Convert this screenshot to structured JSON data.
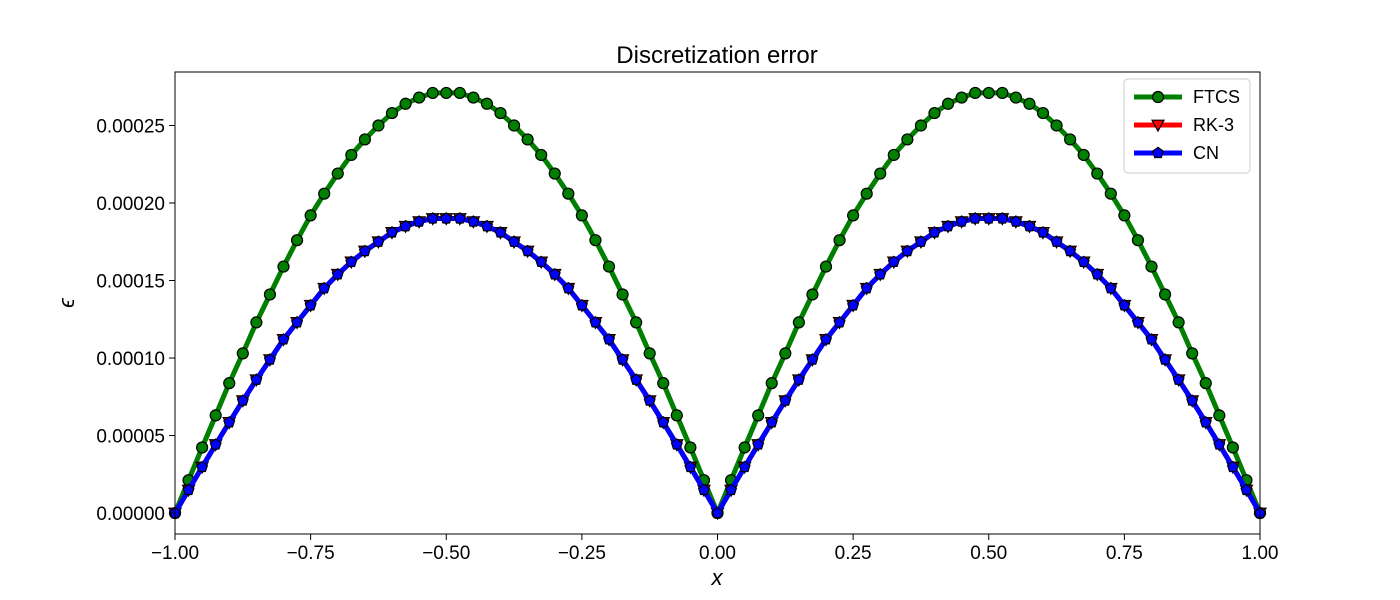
{
  "chart_data": {
    "type": "line",
    "title": "Discretization error",
    "xlabel": "x",
    "ylabel": "ϵ",
    "xlim": [
      -1.0,
      1.0
    ],
    "ylim": [
      -1.35e-05,
      0.0002845
    ],
    "xticks": [
      -1.0,
      -0.75,
      -0.5,
      -0.25,
      0.0,
      0.25,
      0.5,
      0.75,
      1.0
    ],
    "xtick_labels": [
      "−1.00",
      "−0.75",
      "−0.50",
      "−0.25",
      "0.00",
      "0.25",
      "0.50",
      "0.75",
      "1.00"
    ],
    "yticks": [
      0.0,
      5e-05,
      0.0001,
      0.00015,
      0.0002,
      0.00025
    ],
    "ytick_labels": [
      "0.00000",
      "0.00005",
      "0.00010",
      "0.00015",
      "0.00020",
      "0.00025"
    ],
    "grid": false,
    "legend_position": "top-right",
    "x": [
      -1.0,
      -0.975,
      -0.95,
      -0.925,
      -0.9,
      -0.875,
      -0.85,
      -0.825,
      -0.8,
      -0.775,
      -0.75,
      -0.725,
      -0.7,
      -0.675,
      -0.65,
      -0.625,
      -0.6,
      -0.575,
      -0.55,
      -0.525,
      -0.5,
      -0.475,
      -0.45,
      -0.425,
      -0.4,
      -0.375,
      -0.35,
      -0.325,
      -0.3,
      -0.275,
      -0.25,
      -0.225,
      -0.2,
      -0.175,
      -0.15,
      -0.125,
      -0.1,
      -0.075,
      -0.05,
      -0.025,
      0.0,
      0.025,
      0.05,
      0.075,
      0.1,
      0.125,
      0.15,
      0.175,
      0.2,
      0.225,
      0.25,
      0.275,
      0.3,
      0.325,
      0.35,
      0.375,
      0.4,
      0.425,
      0.45,
      0.475,
      0.5,
      0.525,
      0.55,
      0.575,
      0.6,
      0.625,
      0.65,
      0.675,
      0.7,
      0.725,
      0.75,
      0.775,
      0.8,
      0.825,
      0.85,
      0.875,
      0.9,
      0.925,
      0.95,
      0.975,
      1.0
    ],
    "series": [
      {
        "name": "FTCS",
        "color": "#007f00",
        "marker": "circle",
        "values": [
          0.0,
          2.12e-05,
          4.23e-05,
          6.3e-05,
          8.38e-05,
          0.000103,
          0.000123,
          0.000141,
          0.000159,
          0.000176,
          0.000192,
          0.000206,
          0.000219,
          0.000231,
          0.000241,
          0.00025,
          0.000258,
          0.000264,
          0.000268,
          0.000271,
          0.000271,
          0.000271,
          0.000268,
          0.000264,
          0.000258,
          0.00025,
          0.000241,
          0.000231,
          0.000219,
          0.000206,
          0.000192,
          0.000176,
          0.000159,
          0.000141,
          0.000123,
          0.000103,
          8.38e-05,
          6.3e-05,
          4.23e-05,
          2.12e-05,
          0.0,
          2.12e-05,
          4.23e-05,
          6.3e-05,
          8.38e-05,
          0.000103,
          0.000123,
          0.000141,
          0.000159,
          0.000176,
          0.000192,
          0.000206,
          0.000219,
          0.000231,
          0.000241,
          0.00025,
          0.000258,
          0.000264,
          0.000268,
          0.000271,
          0.000271,
          0.000271,
          0.000268,
          0.000264,
          0.000258,
          0.00025,
          0.000241,
          0.000231,
          0.000219,
          0.000206,
          0.000192,
          0.000176,
          0.000159,
          0.000141,
          0.000123,
          0.000103,
          8.38e-05,
          6.3e-05,
          4.23e-05,
          2.12e-05,
          0.0
        ]
      },
      {
        "name": "RK-3",
        "color": "#ff0000",
        "marker": "triangle-down",
        "values": [
          0.0,
          1.49e-05,
          2.97e-05,
          4.42e-05,
          5.85e-05,
          7.25e-05,
          8.6e-05,
          9.9e-05,
          0.000112,
          0.000123,
          0.000134,
          0.000145,
          0.000154,
          0.000162,
          0.000169,
          0.000175,
          0.000181,
          0.000185,
          0.000188,
          0.00019,
          0.00019,
          0.00019,
          0.000188,
          0.000185,
          0.000181,
          0.000175,
          0.000169,
          0.000162,
          0.000154,
          0.000145,
          0.000134,
          0.000123,
          0.000112,
          9.9e-05,
          8.6e-05,
          7.25e-05,
          5.85e-05,
          4.42e-05,
          2.97e-05,
          1.49e-05,
          0.0,
          1.49e-05,
          2.97e-05,
          4.42e-05,
          5.85e-05,
          7.25e-05,
          8.6e-05,
          9.9e-05,
          0.000112,
          0.000123,
          0.000134,
          0.000145,
          0.000154,
          0.000162,
          0.000169,
          0.000175,
          0.000181,
          0.000185,
          0.000188,
          0.00019,
          0.00019,
          0.00019,
          0.000188,
          0.000185,
          0.000181,
          0.000175,
          0.000169,
          0.000162,
          0.000154,
          0.000145,
          0.000134,
          0.000123,
          0.000112,
          9.9e-05,
          8.6e-05,
          7.25e-05,
          5.85e-05,
          4.42e-05,
          2.97e-05,
          1.49e-05,
          0.0
        ]
      },
      {
        "name": "CN",
        "color": "#0000ff",
        "marker": "pentagon",
        "values": [
          0.0,
          1.49e-05,
          2.97e-05,
          4.42e-05,
          5.85e-05,
          7.25e-05,
          8.6e-05,
          9.9e-05,
          0.000112,
          0.000123,
          0.000134,
          0.000145,
          0.000154,
          0.000162,
          0.000169,
          0.000175,
          0.000181,
          0.000185,
          0.000188,
          0.00019,
          0.00019,
          0.00019,
          0.000188,
          0.000185,
          0.000181,
          0.000175,
          0.000169,
          0.000162,
          0.000154,
          0.000145,
          0.000134,
          0.000123,
          0.000112,
          9.9e-05,
          8.6e-05,
          7.25e-05,
          5.85e-05,
          4.42e-05,
          2.97e-05,
          1.49e-05,
          0.0,
          1.49e-05,
          2.97e-05,
          4.42e-05,
          5.85e-05,
          7.25e-05,
          8.6e-05,
          9.9e-05,
          0.000112,
          0.000123,
          0.000134,
          0.000145,
          0.000154,
          0.000162,
          0.000169,
          0.000175,
          0.000181,
          0.000185,
          0.000188,
          0.00019,
          0.00019,
          0.00019,
          0.000188,
          0.000185,
          0.000181,
          0.000175,
          0.000169,
          0.000162,
          0.000154,
          0.000145,
          0.000134,
          0.000123,
          0.000112,
          9.9e-05,
          8.6e-05,
          7.25e-05,
          5.85e-05,
          4.42e-05,
          2.97e-05,
          1.49e-05,
          0.0
        ]
      }
    ]
  }
}
